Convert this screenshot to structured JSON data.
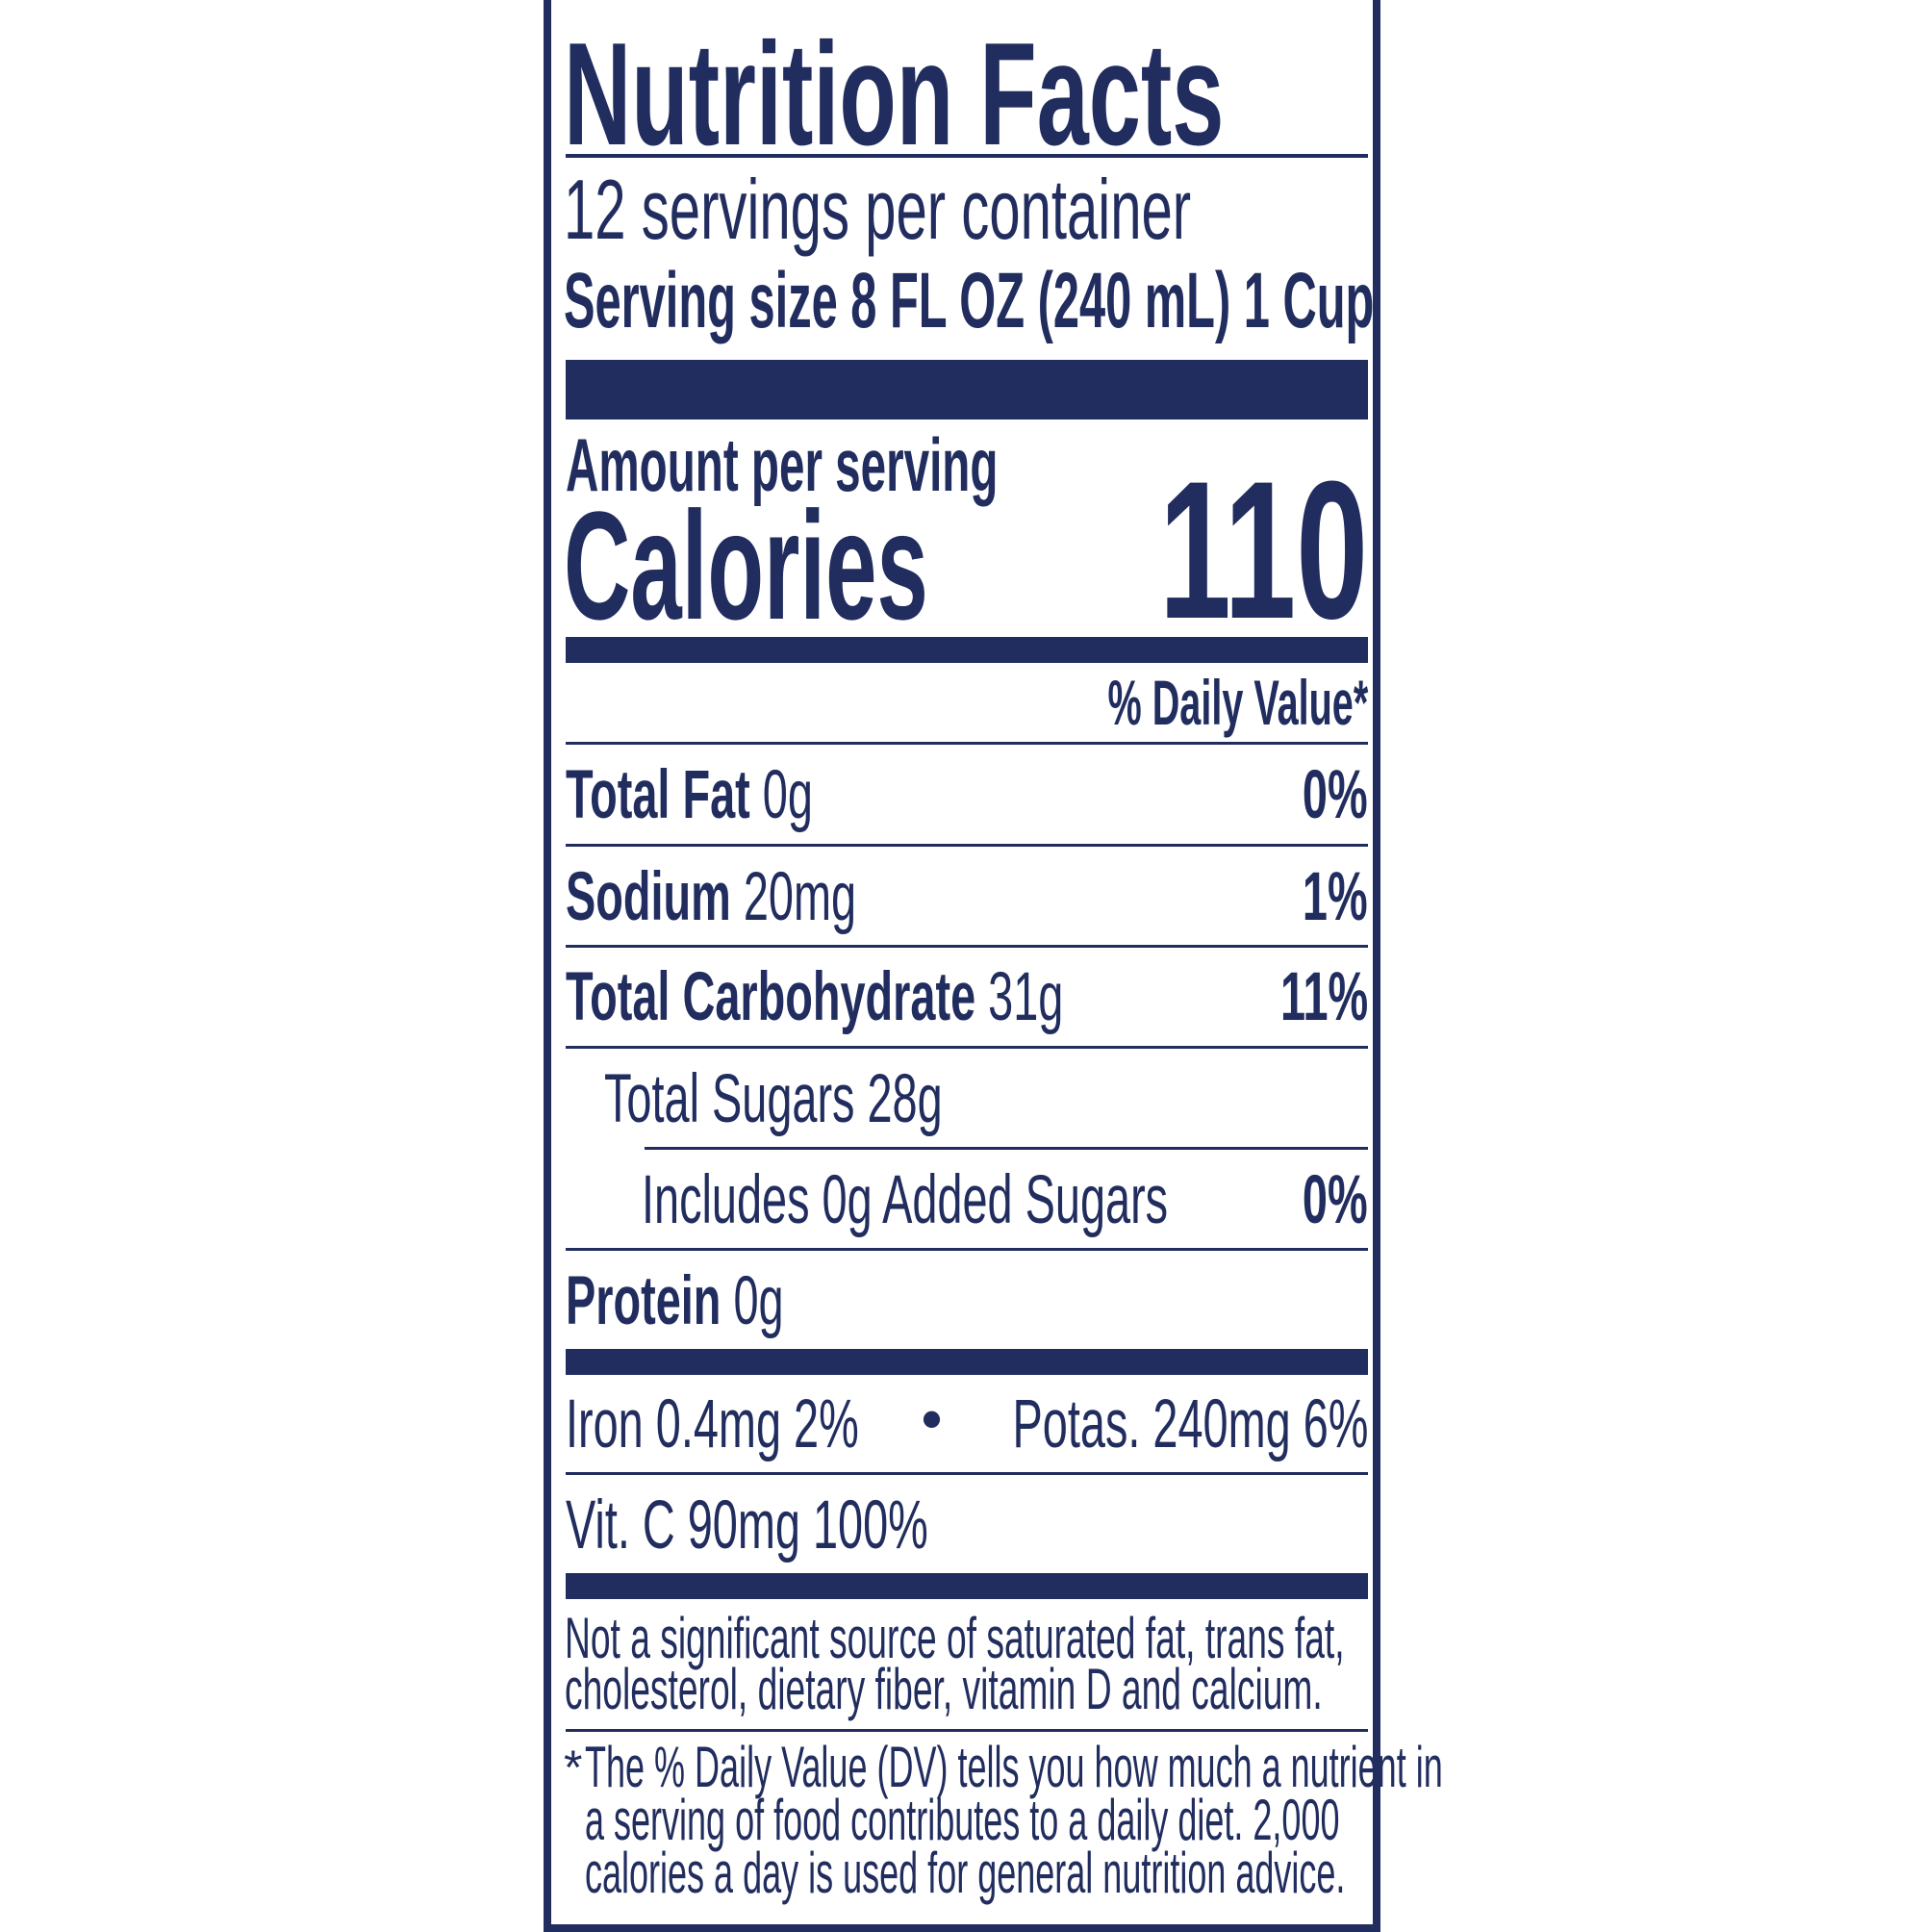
{
  "title": "Nutrition Facts",
  "servings_per_container": "12 servings per container",
  "serving_size": "Serving size 8 FL OZ (240 mL) 1 Cup",
  "amount_per_serving": "Amount per serving",
  "calories_label": "Calories",
  "calories_value": "110",
  "daily_value_header": "% Daily Value*",
  "nutrients": [
    {
      "name": "Total Fat",
      "amount": "0g",
      "dv": "0%"
    },
    {
      "name": "Sodium",
      "amount": "20mg",
      "dv": "1%"
    },
    {
      "name": "Total Carbohydrate",
      "amount": "31g",
      "dv": "11%"
    },
    {
      "name": "Total Sugars 28g",
      "amount": "",
      "dv": ""
    },
    {
      "name": "Includes 0g Added Sugars",
      "amount": "",
      "dv": "0%"
    },
    {
      "name": "Protein",
      "amount": "0g",
      "dv": ""
    }
  ],
  "minerals": {
    "iron": "Iron 0.4mg 2%",
    "bullet": "•",
    "potassium": "Potas. 240mg 6%",
    "vitamin_c": "Vit. C 90mg 100%"
  },
  "not_significant": [
    "Not a significant source of saturated fat, trans fat,",
    "cholesterol, dietary fiber, vitamin D and calcium."
  ],
  "footnote": {
    "star": "*",
    "lines": [
      "The % Daily Value (DV) tells you how much a nutrient in",
      "a serving of food contributes to a daily diet. 2,000",
      "calories a day is used for general nutrition advice."
    ]
  },
  "colors": {
    "ink": "#212d5e",
    "background": "#ffffff"
  }
}
